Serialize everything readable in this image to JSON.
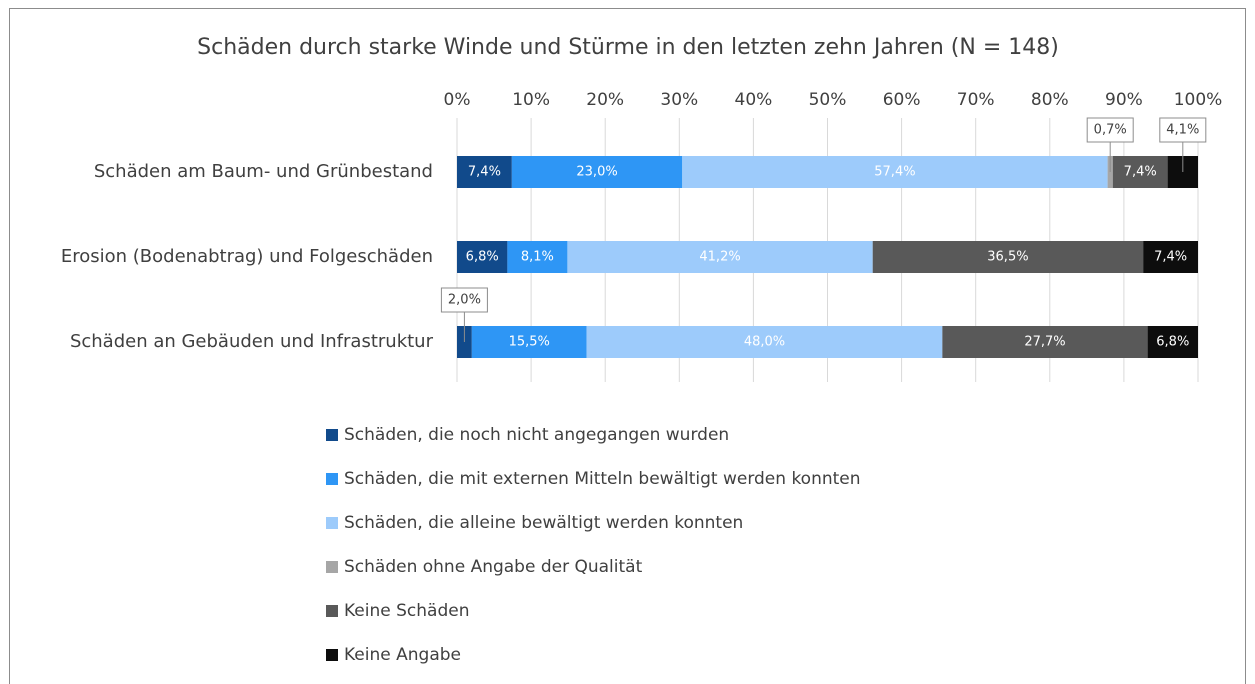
{
  "chart_data": {
    "type": "stacked_bar_horizontal",
    "title": "Schäden durch starke Winde und Stürme in den letzten zehn Jahren (N = 148)",
    "categories": [
      "Schäden am Baum- und Grünbestand",
      "Erosion (Bodenabtrag) und Folgeschäden",
      "Schäden an Gebäuden und Infrastruktur"
    ],
    "xlim": [
      0,
      100
    ],
    "xticks": [
      {
        "value": 0,
        "label": "0%"
      },
      {
        "value": 10,
        "label": "10%"
      },
      {
        "value": 20,
        "label": "20%"
      },
      {
        "value": 30,
        "label": "30%"
      },
      {
        "value": 40,
        "label": "40%"
      },
      {
        "value": 50,
        "label": "50%"
      },
      {
        "value": 60,
        "label": "60%"
      },
      {
        "value": 70,
        "label": "70%"
      },
      {
        "value": 80,
        "label": "80%"
      },
      {
        "value": 90,
        "label": "90%"
      },
      {
        "value": 100,
        "label": "100%"
      }
    ],
    "grid": true,
    "series": [
      {
        "name": "Schäden, die noch nicht angegangen wurden",
        "color": "#114a8b",
        "values": [
          7.4,
          6.8,
          2.0
        ],
        "value_labels": [
          "7,4%",
          "6,8%",
          "2,0%"
        ]
      },
      {
        "name": "Schäden, die mit externen Mitteln bewältigt werden konnten",
        "color": "#2e96f5",
        "values": [
          23.0,
          8.1,
          15.5
        ],
        "value_labels": [
          "23,0%",
          "8,1%",
          "15,5%"
        ]
      },
      {
        "name": "Schäden, die alleine bewältigt werden konnten",
        "color": "#9dcbfb",
        "values": [
          57.4,
          41.2,
          48.0
        ],
        "value_labels": [
          "57,4%",
          "41,2%",
          "48,0%"
        ]
      },
      {
        "name": "Schäden ohne Angabe der Qualität",
        "color": "#a6a6a6",
        "values": [
          0.7,
          0,
          0
        ],
        "value_labels": [
          "0,7%",
          null,
          null
        ]
      },
      {
        "name": "Keine Schäden",
        "color": "#595959",
        "values": [
          7.4,
          36.5,
          27.7
        ],
        "value_labels": [
          "7,4%",
          "36,5%",
          "27,7%"
        ]
      },
      {
        "name": "Keine Angabe",
        "color": "#0d0d0d",
        "values": [
          4.1,
          7.4,
          6.8
        ],
        "value_labels": [
          "4,1%",
          "7,4%",
          "6,8%"
        ]
      }
    ]
  }
}
